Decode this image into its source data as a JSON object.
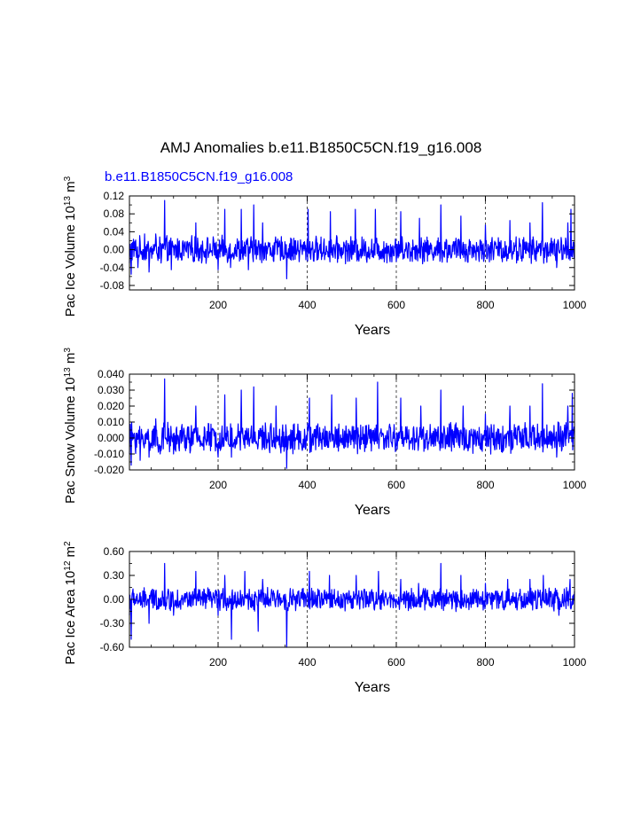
{
  "figure": {
    "title": "AMJ Anomalies b.e11.B1850C5CN.f19_g16.008",
    "subtitle": "b.e11.B1850C5CN.f19_g16.008",
    "line_color": "#0000ff"
  },
  "chart_data": [
    {
      "type": "line",
      "ylabel": {
        "base": "Pac Ice Volume 10",
        "exp": "13",
        "unit": " m",
        "unit_exp": "3"
      },
      "xlabel": "Years",
      "xlim": [
        1,
        1000
      ],
      "ylim": [
        -0.09,
        0.12
      ],
      "xticks": [
        200,
        400,
        600,
        800,
        1000
      ],
      "xtick_labels": [
        "200",
        "400",
        "600",
        "800",
        "1000"
      ],
      "yticks": [
        0.12,
        0.08,
        0.04,
        0.0,
        -0.04,
        -0.08
      ],
      "ytick_labels": [
        "0.12",
        "0.08",
        "0.04",
        "0.00",
        "-0.04",
        "-0.08"
      ],
      "grid": "vertical dashed at x ticks",
      "series": [
        {
          "keypoints": [
            [
              1,
              -0.03
            ],
            [
              5,
              -0.055
            ],
            [
              12,
              0.01
            ],
            [
              20,
              -0.04
            ],
            [
              35,
              0.035
            ],
            [
              45,
              -0.05
            ],
            [
              60,
              0.035
            ],
            [
              72,
              -0.03
            ],
            [
              80,
              0.11
            ],
            [
              95,
              -0.045
            ],
            [
              150,
              0.06
            ],
            [
              200,
              -0.045
            ],
            [
              215,
              0.09
            ],
            [
              228,
              -0.04
            ],
            [
              252,
              0.09
            ],
            [
              268,
              -0.045
            ],
            [
              280,
              0.1
            ],
            [
              300,
              0.06
            ],
            [
              354,
              -0.065
            ],
            [
              402,
              0.09
            ],
            [
              452,
              0.085
            ],
            [
              508,
              0.09
            ],
            [
              553,
              0.09
            ],
            [
              610,
              0.085
            ],
            [
              652,
              0.07
            ],
            [
              700,
              0.1
            ],
            [
              745,
              0.075
            ],
            [
              800,
              0.055
            ],
            [
              855,
              0.065
            ],
            [
              900,
              0.06
            ],
            [
              928,
              0.105
            ],
            [
              960,
              -0.04
            ],
            [
              985,
              0.06
            ],
            [
              992,
              0.09
            ],
            [
              1000,
              0.01
            ]
          ],
          "amplitude": 0.025
        }
      ]
    },
    {
      "type": "line",
      "ylabel": {
        "base": "Pac Snow Volume 10",
        "exp": "13",
        "unit": " m",
        "unit_exp": "3"
      },
      "xlabel": "Years",
      "xlim": [
        1,
        1000
      ],
      "ylim": [
        -0.02,
        0.04
      ],
      "xticks": [
        200,
        400,
        600,
        800,
        1000
      ],
      "xtick_labels": [
        "200",
        "400",
        "600",
        "800",
        "1000"
      ],
      "yticks": [
        0.04,
        0.03,
        0.02,
        0.01,
        0.0,
        -0.01,
        -0.02
      ],
      "ytick_labels": [
        "0.040",
        "0.030",
        "0.020",
        "0.010",
        "0.000",
        "-0.010",
        "-0.020"
      ],
      "grid": "vertical dashed at x ticks",
      "series": [
        {
          "keypoints": [
            [
              1,
              -0.01
            ],
            [
              5,
              -0.017
            ],
            [
              12,
              0.003
            ],
            [
              25,
              -0.014
            ],
            [
              45,
              -0.012
            ],
            [
              60,
              0.012
            ],
            [
              70,
              -0.01
            ],
            [
              80,
              0.037
            ],
            [
              100,
              -0.01
            ],
            [
              150,
              0.02
            ],
            [
              200,
              -0.012
            ],
            [
              215,
              0.027
            ],
            [
              230,
              -0.012
            ],
            [
              252,
              0.03
            ],
            [
              280,
              0.032
            ],
            [
              330,
              0.02
            ],
            [
              354,
              -0.019
            ],
            [
              405,
              0.025
            ],
            [
              455,
              0.027
            ],
            [
              510,
              0.025
            ],
            [
              558,
              0.035
            ],
            [
              610,
              0.025
            ],
            [
              655,
              0.02
            ],
            [
              700,
              0.03
            ],
            [
              750,
              0.02
            ],
            [
              800,
              0.015
            ],
            [
              855,
              0.02
            ],
            [
              900,
              0.02
            ],
            [
              928,
              0.034
            ],
            [
              960,
              -0.012
            ],
            [
              985,
              0.02
            ],
            [
              995,
              0.028
            ],
            [
              1000,
              0.004
            ]
          ],
          "amplitude": 0.008
        }
      ]
    },
    {
      "type": "line",
      "ylabel": {
        "base": "Pac Ice Area 10",
        "exp": "12",
        "unit": " m",
        "unit_exp": "2"
      },
      "xlabel": "Years",
      "xlim": [
        1,
        1000
      ],
      "ylim": [
        -0.6,
        0.6
      ],
      "xticks": [
        200,
        400,
        600,
        800,
        1000
      ],
      "xtick_labels": [
        "200",
        "400",
        "600",
        "800",
        "1000"
      ],
      "yticks": [
        0.6,
        0.3,
        0.0,
        -0.3,
        -0.6
      ],
      "ytick_labels": [
        "0.60",
        "0.30",
        "0.00",
        "-0.30",
        "-0.60"
      ],
      "grid": "vertical dashed at x ticks",
      "series": [
        {
          "keypoints": [
            [
              1,
              -0.2
            ],
            [
              5,
              -0.5
            ],
            [
              15,
              -0.05
            ],
            [
              30,
              -0.1
            ],
            [
              45,
              -0.3
            ],
            [
              60,
              0.1
            ],
            [
              80,
              0.45
            ],
            [
              100,
              -0.2
            ],
            [
              150,
              0.35
            ],
            [
              200,
              -0.2
            ],
            [
              215,
              0.3
            ],
            [
              230,
              -0.5
            ],
            [
              260,
              0.35
            ],
            [
              290,
              -0.4
            ],
            [
              300,
              0.25
            ],
            [
              354,
              -0.6
            ],
            [
              405,
              0.35
            ],
            [
              450,
              0.3
            ],
            [
              510,
              0.3
            ],
            [
              560,
              0.35
            ],
            [
              610,
              0.25
            ],
            [
              650,
              0.2
            ],
            [
              700,
              0.45
            ],
            [
              745,
              0.3
            ],
            [
              800,
              0.2
            ],
            [
              850,
              0.25
            ],
            [
              900,
              0.25
            ],
            [
              930,
              0.3
            ],
            [
              965,
              -0.2
            ],
            [
              990,
              0.25
            ],
            [
              1000,
              0.1
            ]
          ],
          "amplitude": 0.12
        }
      ]
    }
  ]
}
